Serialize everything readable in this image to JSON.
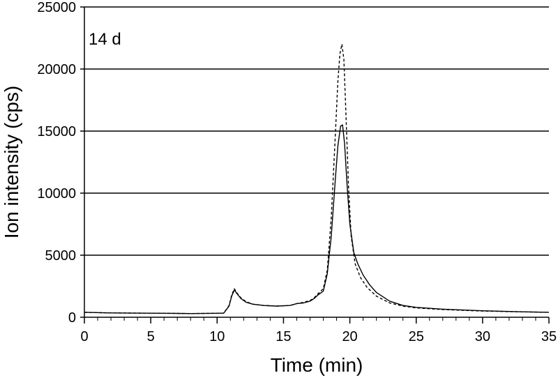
{
  "chart_data": {
    "type": "line",
    "title": "",
    "annotation": "14 d",
    "xlabel": "Time (min)",
    "ylabel": "Ion intensity (cps)",
    "xlim": [
      0,
      35
    ],
    "ylim": [
      0,
      25000
    ],
    "xticks": [
      0,
      5,
      10,
      15,
      20,
      25,
      30,
      35
    ],
    "yticks": [
      0,
      5000,
      10000,
      15000,
      20000,
      25000
    ],
    "xtick_labels": [
      "0",
      "5",
      "10",
      "15",
      "20",
      "25",
      "30",
      "35"
    ],
    "ytick_labels": [
      "0",
      "5000",
      "10000",
      "15000",
      "20000",
      "25000"
    ],
    "grid": "horizontal",
    "legend": "none",
    "series": [
      {
        "style": "solid",
        "color": "#000000",
        "x": [
          0,
          2,
          4,
          6,
          8,
          10,
          10.5,
          10.9,
          11.1,
          11.3,
          11.5,
          11.8,
          12.2,
          12.7,
          13.5,
          14.5,
          15.5,
          16,
          16.5,
          17,
          17.3,
          17.6,
          18,
          18.3,
          18.6,
          18.9,
          19.1,
          19.3,
          19.45,
          19.6,
          19.8,
          20.0,
          20.3,
          20.6,
          21.0,
          21.5,
          22,
          23,
          24,
          25,
          27,
          30,
          33,
          35
        ],
        "y": [
          400,
          350,
          330,
          320,
          300,
          320,
          330,
          900,
          1700,
          2200,
          1900,
          1500,
          1200,
          1050,
          950,
          900,
          950,
          1100,
          1150,
          1300,
          1500,
          1800,
          2100,
          3500,
          6500,
          11000,
          13800,
          15400,
          15500,
          14000,
          10500,
          7500,
          5200,
          4300,
          3400,
          2600,
          2000,
          1300,
          950,
          800,
          650,
          520,
          440,
          400
        ]
      },
      {
        "style": "dashed",
        "color": "#000000",
        "x": [
          0,
          2,
          4,
          6,
          8,
          10,
          10.5,
          10.9,
          11.1,
          11.3,
          11.5,
          11.8,
          12.2,
          12.7,
          13.5,
          14.5,
          15.5,
          16,
          16.5,
          17,
          17.3,
          17.6,
          18,
          18.3,
          18.6,
          18.9,
          19.1,
          19.25,
          19.4,
          19.55,
          19.7,
          19.9,
          20.1,
          20.4,
          20.8,
          21.3,
          22,
          23,
          24,
          25,
          27,
          30,
          33,
          35
        ],
        "y": [
          400,
          350,
          330,
          320,
          300,
          320,
          330,
          950,
          1800,
          2300,
          1950,
          1550,
          1250,
          1050,
          950,
          900,
          950,
          1100,
          1200,
          1350,
          1550,
          1900,
          2300,
          3800,
          8000,
          14500,
          19000,
          21200,
          22000,
          20800,
          16500,
          10500,
          6500,
          4300,
          3200,
          2400,
          1700,
          1150,
          900,
          750,
          620,
          500,
          430,
          400
        ]
      }
    ]
  }
}
